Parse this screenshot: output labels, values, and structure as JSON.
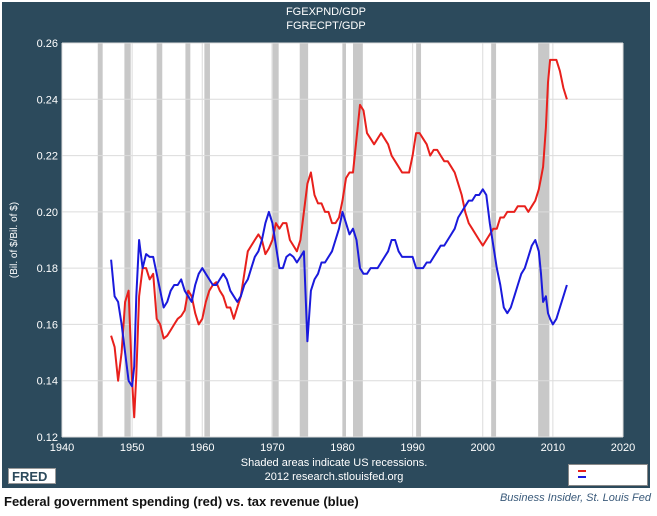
{
  "chart_data": {
    "type": "line",
    "title": "FGEXPND/GDP",
    "subtitle": "FGRECPT/GDP",
    "xlabel": "",
    "ylabel": "(Bil. of $/Bil. of $)",
    "xlim": [
      1940,
      2020
    ],
    "ylim": [
      0.12,
      0.26
    ],
    "x_ticks": [
      "1940",
      "1950",
      "1960",
      "1970",
      "1980",
      "1990",
      "2000",
      "2010",
      "2020"
    ],
    "y_ticks": [
      "0.12",
      "0.14",
      "0.16",
      "0.18",
      "0.20",
      "0.22",
      "0.24",
      "0.26"
    ],
    "grid": true,
    "recessions": [
      [
        1945.1,
        1945.8
      ],
      [
        1948.9,
        1949.8
      ],
      [
        1953.5,
        1954.3
      ],
      [
        1957.6,
        1958.3
      ],
      [
        1960.3,
        1961.1
      ],
      [
        1969.9,
        1970.9
      ],
      [
        1973.9,
        1975.1
      ],
      [
        1980.0,
        1980.5
      ],
      [
        1981.5,
        1982.9
      ],
      [
        1990.5,
        1991.2
      ],
      [
        2001.2,
        2001.9
      ],
      [
        2007.9,
        2009.5
      ]
    ],
    "note": "Shaded areas indicate US recessions.",
    "source_line": "2012 research.stlouisfed.org",
    "series": [
      {
        "color": "#e8201c",
        "x": [
          1947.0,
          1947.5,
          1948.0,
          1948.5,
          1949.0,
          1949.5,
          1950.0,
          1950.3,
          1950.6,
          1951.0,
          1951.5,
          1952.0,
          1952.5,
          1953.0,
          1953.5,
          1954.0,
          1954.5,
          1955.0,
          1955.5,
          1956.0,
          1956.5,
          1957.0,
          1957.5,
          1958.0,
          1958.5,
          1959.0,
          1959.5,
          1960.0,
          1960.5,
          1961.0,
          1961.5,
          1962.0,
          1962.5,
          1963.0,
          1963.5,
          1964.0,
          1964.5,
          1965.0,
          1965.5,
          1966.0,
          1966.5,
          1967.0,
          1967.5,
          1968.0,
          1968.5,
          1969.0,
          1969.5,
          1970.0,
          1970.5,
          1971.0,
          1971.5,
          1972.0,
          1972.5,
          1973.0,
          1973.5,
          1974.0,
          1974.5,
          1975.0,
          1975.5,
          1976.0,
          1976.5,
          1977.0,
          1977.5,
          1978.0,
          1978.5,
          1979.0,
          1979.5,
          1980.0,
          1980.5,
          1981.0,
          1981.5,
          1982.0,
          1982.5,
          1983.0,
          1983.5,
          1984.0,
          1984.5,
          1985.0,
          1985.5,
          1986.0,
          1986.5,
          1987.0,
          1987.5,
          1988.0,
          1988.5,
          1989.0,
          1989.5,
          1990.0,
          1990.5,
          1991.0,
          1991.5,
          1992.0,
          1992.5,
          1993.0,
          1993.5,
          1994.0,
          1994.5,
          1995.0,
          1995.5,
          1996.0,
          1996.5,
          1997.0,
          1997.5,
          1998.0,
          1998.5,
          1999.0,
          1999.5,
          2000.0,
          2000.5,
          2001.0,
          2001.5,
          2002.0,
          2002.5,
          2003.0,
          2003.5,
          2004.0,
          2004.5,
          2005.0,
          2005.5,
          2006.0,
          2006.5,
          2007.0,
          2007.5,
          2008.0,
          2008.3,
          2008.6,
          2009.0,
          2009.3,
          2009.6,
          2010.0,
          2010.5,
          2011.0,
          2011.5,
          2012.0
        ],
        "y": [
          0.156,
          0.152,
          0.14,
          0.15,
          0.168,
          0.172,
          0.14,
          0.127,
          0.142,
          0.17,
          0.18,
          0.18,
          0.176,
          0.178,
          0.162,
          0.16,
          0.155,
          0.156,
          0.158,
          0.16,
          0.162,
          0.163,
          0.165,
          0.172,
          0.17,
          0.164,
          0.16,
          0.162,
          0.168,
          0.172,
          0.174,
          0.175,
          0.172,
          0.17,
          0.166,
          0.166,
          0.162,
          0.166,
          0.17,
          0.178,
          0.186,
          0.188,
          0.19,
          0.192,
          0.19,
          0.185,
          0.187,
          0.19,
          0.196,
          0.194,
          0.196,
          0.196,
          0.19,
          0.188,
          0.186,
          0.19,
          0.2,
          0.21,
          0.214,
          0.206,
          0.203,
          0.203,
          0.2,
          0.2,
          0.196,
          0.196,
          0.198,
          0.204,
          0.212,
          0.214,
          0.214,
          0.226,
          0.238,
          0.236,
          0.228,
          0.226,
          0.224,
          0.226,
          0.228,
          0.226,
          0.224,
          0.22,
          0.218,
          0.216,
          0.214,
          0.214,
          0.214,
          0.22,
          0.228,
          0.228,
          0.226,
          0.224,
          0.22,
          0.222,
          0.222,
          0.22,
          0.218,
          0.218,
          0.216,
          0.214,
          0.21,
          0.206,
          0.2,
          0.196,
          0.194,
          0.192,
          0.19,
          0.188,
          0.19,
          0.192,
          0.194,
          0.194,
          0.198,
          0.198,
          0.2,
          0.2,
          0.2,
          0.202,
          0.202,
          0.202,
          0.2,
          0.202,
          0.204,
          0.208,
          0.212,
          0.216,
          0.23,
          0.246,
          0.254,
          0.254,
          0.254,
          0.25,
          0.244,
          0.24
        ]
      },
      {
        "color": "#1a1adc",
        "x": [
          1947.0,
          1947.5,
          1948.0,
          1948.5,
          1949.0,
          1949.5,
          1950.0,
          1950.3,
          1950.6,
          1951.0,
          1951.5,
          1952.0,
          1952.5,
          1953.0,
          1953.5,
          1954.0,
          1954.5,
          1955.0,
          1955.5,
          1956.0,
          1956.5,
          1957.0,
          1957.5,
          1958.0,
          1958.5,
          1959.0,
          1959.5,
          1960.0,
          1960.5,
          1961.0,
          1961.5,
          1962.0,
          1962.5,
          1963.0,
          1963.5,
          1964.0,
          1964.5,
          1965.0,
          1965.5,
          1966.0,
          1966.5,
          1967.0,
          1967.5,
          1968.0,
          1968.5,
          1969.0,
          1969.5,
          1970.0,
          1970.5,
          1971.0,
          1971.5,
          1972.0,
          1972.5,
          1973.0,
          1973.5,
          1974.0,
          1974.5,
          1975.0,
          1975.5,
          1976.0,
          1976.5,
          1977.0,
          1977.5,
          1978.0,
          1978.5,
          1979.0,
          1979.5,
          1980.0,
          1980.5,
          1981.0,
          1981.5,
          1982.0,
          1982.5,
          1983.0,
          1983.5,
          1984.0,
          1984.5,
          1985.0,
          1985.5,
          1986.0,
          1986.5,
          1987.0,
          1987.5,
          1988.0,
          1988.5,
          1989.0,
          1989.5,
          1990.0,
          1990.5,
          1991.0,
          1991.5,
          1992.0,
          1992.5,
          1993.0,
          1993.5,
          1994.0,
          1994.5,
          1995.0,
          1995.5,
          1996.0,
          1996.5,
          1997.0,
          1997.5,
          1998.0,
          1998.5,
          1999.0,
          1999.5,
          2000.0,
          2000.5,
          2001.0,
          2001.5,
          2002.0,
          2002.5,
          2003.0,
          2003.5,
          2004.0,
          2004.5,
          2005.0,
          2005.5,
          2006.0,
          2006.5,
          2007.0,
          2007.5,
          2008.0,
          2008.3,
          2008.6,
          2009.0,
          2009.3,
          2009.6,
          2010.0,
          2010.5,
          2011.0,
          2011.5,
          2012.0
        ],
        "y": [
          0.183,
          0.17,
          0.168,
          0.16,
          0.15,
          0.14,
          0.138,
          0.145,
          0.17,
          0.19,
          0.18,
          0.185,
          0.184,
          0.184,
          0.178,
          0.172,
          0.166,
          0.168,
          0.172,
          0.174,
          0.174,
          0.176,
          0.172,
          0.17,
          0.168,
          0.174,
          0.178,
          0.18,
          0.178,
          0.176,
          0.174,
          0.174,
          0.176,
          0.178,
          0.176,
          0.172,
          0.17,
          0.168,
          0.17,
          0.174,
          0.176,
          0.18,
          0.184,
          0.186,
          0.19,
          0.196,
          0.2,
          0.196,
          0.188,
          0.18,
          0.18,
          0.184,
          0.185,
          0.184,
          0.182,
          0.184,
          0.186,
          0.154,
          0.172,
          0.176,
          0.178,
          0.182,
          0.182,
          0.184,
          0.186,
          0.19,
          0.194,
          0.2,
          0.196,
          0.192,
          0.194,
          0.19,
          0.18,
          0.178,
          0.178,
          0.18,
          0.18,
          0.18,
          0.182,
          0.184,
          0.186,
          0.19,
          0.19,
          0.186,
          0.184,
          0.184,
          0.184,
          0.184,
          0.18,
          0.18,
          0.18,
          0.182,
          0.182,
          0.184,
          0.186,
          0.188,
          0.188,
          0.19,
          0.192,
          0.194,
          0.198,
          0.2,
          0.202,
          0.204,
          0.204,
          0.206,
          0.206,
          0.208,
          0.206,
          0.196,
          0.188,
          0.18,
          0.174,
          0.166,
          0.164,
          0.166,
          0.17,
          0.174,
          0.178,
          0.18,
          0.184,
          0.188,
          0.19,
          0.186,
          0.178,
          0.168,
          0.17,
          0.164,
          0.162,
          0.16,
          0.162,
          0.166,
          0.17,
          0.174
        ]
      }
    ]
  },
  "footer": {
    "logo_text": "FRED",
    "caption": "Federal government spending (red) vs. tax revenue (blue)",
    "source": "Business Insider, St. Louis Fed"
  }
}
